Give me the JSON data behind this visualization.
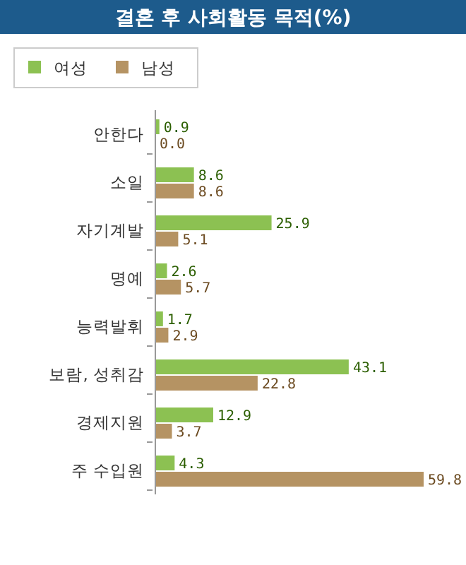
{
  "chart_data": {
    "type": "bar",
    "orientation": "horizontal",
    "title": "결혼 후 사회활동 목적(%)",
    "categories": [
      "안한다",
      "소일",
      "자기계발",
      "명예",
      "능력발휘",
      "보람, 성취감",
      "경제지원",
      "주 수입원"
    ],
    "series": [
      {
        "name": "여성",
        "color": "#8cc152",
        "values": [
          0.9,
          8.6,
          25.9,
          2.6,
          1.7,
          43.1,
          12.9,
          4.3
        ],
        "value_labels": [
          "0.9",
          "8.6",
          "25.9",
          "2.6",
          "1.7",
          "43.1",
          "12.9",
          "4.3"
        ]
      },
      {
        "name": "남성",
        "color": "#b59363",
        "values": [
          0.0,
          8.6,
          5.1,
          5.7,
          2.9,
          22.8,
          3.7,
          59.8
        ],
        "value_labels": [
          "0.0",
          "8.6",
          "5.1",
          "5.7",
          "2.9",
          "22.8",
          "3.7",
          "59.8"
        ]
      }
    ],
    "legend": "top left"
  }
}
